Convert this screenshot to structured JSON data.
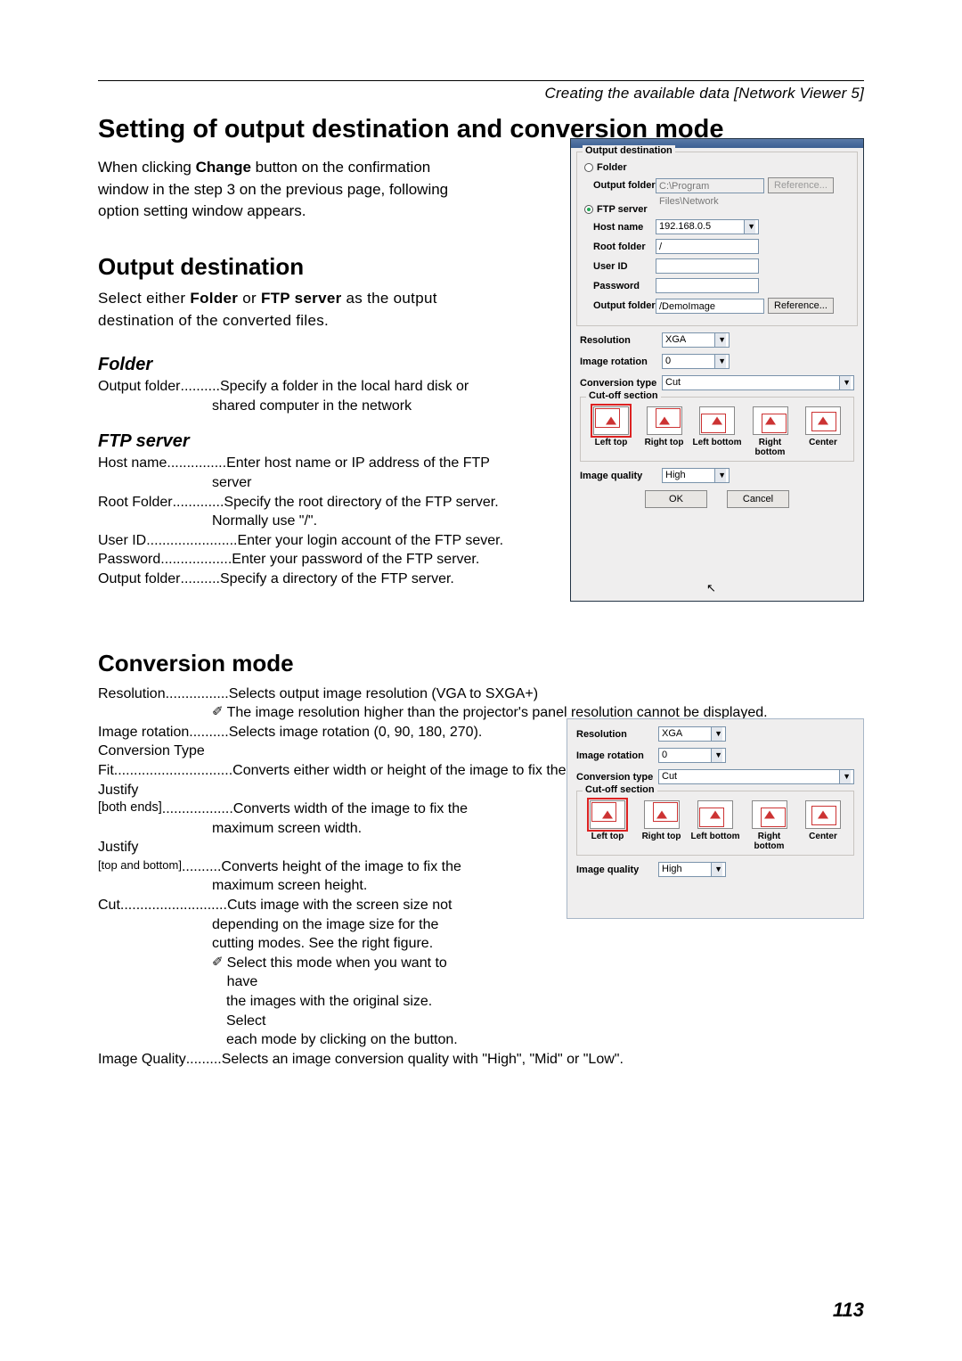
{
  "header": "Creating the available data [Network Viewer 5]",
  "page_number": "113",
  "h1": "Setting of output destination and conversion mode",
  "intro_pre": "When clicking ",
  "intro_bold": "Change",
  "intro_post": " button on the confirmation window in the step 3 on the previous page, following option setting window appears.",
  "h2_out": "Output destination",
  "out_body_pre": "Select either ",
  "out_body_b1": "Folder",
  "out_body_mid": " or ",
  "out_body_b2": "FTP server",
  "out_body_post": " as the output destination of the converted files.",
  "h3_folder": "Folder",
  "folder_defs": [
    {
      "term": "Output folder",
      "dots": "..........",
      "desc": "Specify a folder in the local hard disk or",
      "cont": "shared computer in the network"
    }
  ],
  "h3_ftp": "FTP server",
  "ftp_defs": [
    {
      "term": "Host name",
      "dots": "...............",
      "desc": "Enter host name or IP address of the FTP",
      "cont": "server"
    },
    {
      "term": "Root Folder",
      "dots": ".............",
      "desc": "Specify the root directory of the FTP server.",
      "cont": "Normally use \"/\"."
    },
    {
      "term": "User ID",
      "dots": ".......................",
      "desc": "Enter your login account of the FTP sever."
    },
    {
      "term": "Password",
      "dots": "..................",
      "desc": "Enter your password of the FTP server."
    },
    {
      "term": "Output folder",
      "dots": "..........",
      "desc": "Specify a directory of the FTP server."
    }
  ],
  "h2_conv": "Conversion mode",
  "conv_res_term": "Resolution",
  "conv_res_dots": "................",
  "conv_res_desc": "Selects output image resolution (VGA to SXGA+)",
  "conv_res_note": "The image resolution higher than the projector's panel resolution cannot be displayed.",
  "conv_rot_term": "Image rotation",
  "conv_rot_dots": "..........",
  "conv_rot_desc": "Selects image rotation (0, 90, 180, 270).",
  "conv_type_label": "Conversion Type",
  "conv_fit_term": "Fit",
  "conv_fit_dots": "..............................",
  "conv_fit_desc": "Converts either width or height of the image  to fix the maximum screen width or height.",
  "conv_jbe_pre": "Justify",
  "conv_jbe_term": "[both ends]",
  "conv_jbe_dots": "..................",
  "conv_jbe_desc": "Converts width of the image to fix the",
  "conv_jbe_cont": "maximum screen width.",
  "conv_jtb_pre": "Justify",
  "conv_jtb_term": "[top and bottom]",
  "conv_jtb_dots": "..........",
  "conv_jtb_desc": "Converts height of the image to fix the",
  "conv_jtb_cont": "maximum screen height.",
  "conv_cut_term": "Cut",
  "conv_cut_dots": "...........................",
  "conv_cut_desc": "Cuts image with the screen size not",
  "conv_cut_cont1": "depending on the image size for the",
  "conv_cut_cont2": "cutting modes. See the right figure.",
  "conv_cut_note1": "Select this mode when you want to have",
  "conv_cut_note2": "the images with the original size. Select",
  "conv_cut_note3": "each mode by clicking on the button.",
  "conv_iq_term": "Image Quality",
  "conv_iq_dots": ".........",
  "conv_iq_desc": "Selects an image conversion quality with \"High\", \"Mid\" or \"Low\".",
  "dialog": {
    "out_dest_legend": "Output destination",
    "folder_radio": "Folder",
    "output_folder_lbl": "Output folder",
    "output_folder_val": "C:\\Program Files\\Network",
    "reference_btn": "Reference...",
    "ftp_radio": "FTP server",
    "host_lbl": "Host name",
    "host_val": "192.168.0.5",
    "root_lbl": "Root folder",
    "root_val": "/",
    "user_lbl": "User ID",
    "user_val": "",
    "pass_lbl": "Password",
    "pass_val": "",
    "out2_lbl": "Output folder",
    "out2_val": "/DemoImage",
    "res_lbl": "Resolution",
    "res_val": "XGA",
    "rot_lbl": "Image rotation",
    "rot_val": "0",
    "convtype_lbl": "Conversion type",
    "convtype_val": "Cut",
    "cutoff_legend": "Cut-off section",
    "cut_lt": "Left top",
    "cut_rt": "Right top",
    "cut_lb": "Left bottom",
    "cut_rb": "Right bottom",
    "cut_c": "Center",
    "iq_lbl": "Image quality",
    "iq_val": "High",
    "ok_btn": "OK",
    "cancel_btn": "Cancel"
  }
}
